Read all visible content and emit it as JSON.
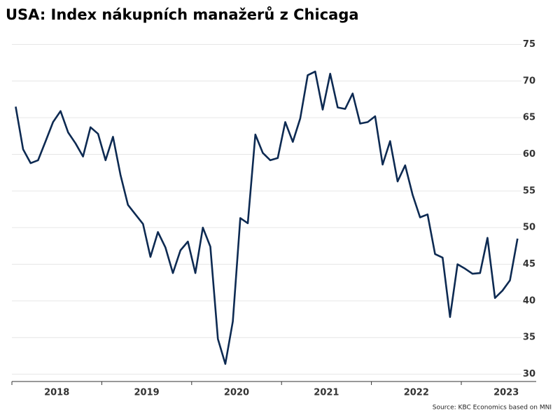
{
  "chart_data": {
    "type": "line",
    "title": "USA: Index nákupních manažerů z Chicaga",
    "source": "Source: KBC Economics based on MNI",
    "x": [
      "2018-01",
      "2018-02",
      "2018-03",
      "2018-04",
      "2018-05",
      "2018-06",
      "2018-07",
      "2018-08",
      "2018-09",
      "2018-10",
      "2018-11",
      "2018-12",
      "2019-01",
      "2019-02",
      "2019-03",
      "2019-04",
      "2019-05",
      "2019-06",
      "2019-07",
      "2019-08",
      "2019-09",
      "2019-10",
      "2019-11",
      "2019-12",
      "2020-01",
      "2020-02",
      "2020-03",
      "2020-04",
      "2020-05",
      "2020-06",
      "2020-07",
      "2020-08",
      "2020-09",
      "2020-10",
      "2020-11",
      "2020-12",
      "2021-01",
      "2021-02",
      "2021-03",
      "2021-04",
      "2021-05",
      "2021-06",
      "2021-07",
      "2021-08",
      "2021-09",
      "2021-10",
      "2021-11",
      "2021-12",
      "2022-01",
      "2022-02",
      "2022-03",
      "2022-04",
      "2022-05",
      "2022-06",
      "2022-07",
      "2022-08",
      "2022-09",
      "2022-10",
      "2022-11",
      "2022-12",
      "2023-01",
      "2023-02",
      "2023-03",
      "2023-04",
      "2023-05",
      "2023-06",
      "2023-07",
      "2023-08"
    ],
    "year_labels": [
      "2018",
      "2019",
      "2020",
      "2021",
      "2022",
      "2023"
    ],
    "series": [
      {
        "color": "#0d2a52",
        "values": [
          66.5,
          60.7,
          58.8,
          59.2,
          61.8,
          64.4,
          65.9,
          63.0,
          61.5,
          59.7,
          63.7,
          62.8,
          59.2,
          62.4,
          57.2,
          53.1,
          51.8,
          50.5,
          46.0,
          49.4,
          47.3,
          43.8,
          46.9,
          48.1,
          43.8,
          50.0,
          47.4,
          34.8,
          31.4,
          37.2,
          51.3,
          50.6,
          62.7,
          60.2,
          59.2,
          59.5,
          64.4,
          61.7,
          64.9,
          70.8,
          71.3,
          66.1,
          71.0,
          66.4,
          66.2,
          68.3,
          64.2,
          64.4,
          65.2,
          58.6,
          61.8,
          56.3,
          58.5,
          54.5,
          51.4,
          51.8,
          46.4,
          45.9,
          37.8,
          45.0,
          44.4,
          43.7,
          43.8,
          48.6,
          40.4,
          41.4,
          42.8,
          48.5
        ]
      }
    ],
    "ylim": [
      29,
      76
    ],
    "yticks": [
      30,
      35,
      40,
      45,
      50,
      55,
      60,
      65,
      70,
      75
    ],
    "grid": true
  }
}
